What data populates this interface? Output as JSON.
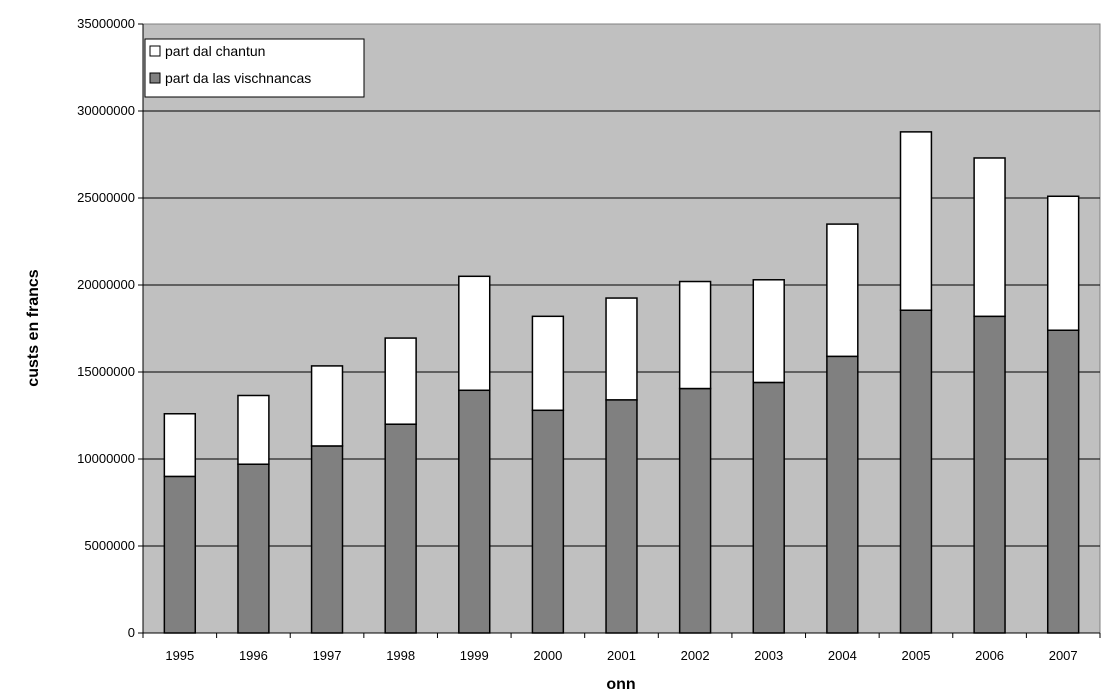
{
  "chart_data": {
    "type": "bar",
    "stacked": true,
    "title": "",
    "xlabel": "onn",
    "ylabel": "custs en francs",
    "categories": [
      "1995",
      "1996",
      "1997",
      "1998",
      "1999",
      "2000",
      "2001",
      "2002",
      "2003",
      "2004",
      "2005",
      "2006",
      "2007"
    ],
    "series": [
      {
        "name": "part da las vischnancas",
        "color": "#808080",
        "values": [
          9000000,
          9700000,
          10750000,
          12000000,
          13950000,
          12800000,
          13400000,
          14050000,
          14400000,
          15900000,
          18550000,
          18200000,
          17400000
        ]
      },
      {
        "name": "part dal chantun",
        "color": "#ffffff",
        "values": [
          3600000,
          3950000,
          4600000,
          4950000,
          6550000,
          5400000,
          5850000,
          6150000,
          5900000,
          7600000,
          10250000,
          9100000,
          7700000
        ]
      }
    ],
    "ylim": [
      0,
      35000000
    ],
    "yticks": [
      "0",
      "5000000",
      "10000000",
      "15000000",
      "20000000",
      "25000000",
      "30000000",
      "35000000"
    ],
    "grid": true,
    "plot_background": "#c0c0c0",
    "legend_position": "top-left"
  }
}
